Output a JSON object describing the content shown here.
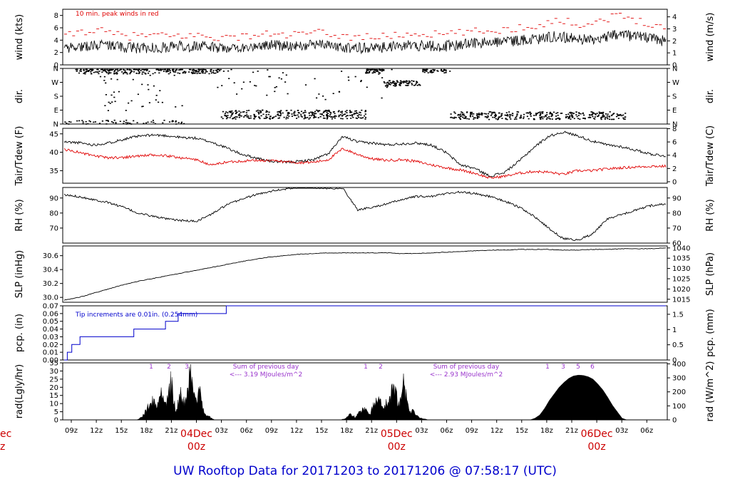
{
  "title": "UW Rooftop Data for 20171203  to  20171206 @ 07:58:17  (UTC)",
  "colors": {
    "black": "#000000",
    "red": "#e00000",
    "blue": "#0000cc",
    "purple": "#9933cc",
    "dayRed": "#cc0000"
  },
  "chart_data": [
    {
      "type": "line",
      "panel": "wind",
      "ylabel": "wind (kts)",
      "ylabel_right": "wind (m/s)",
      "ylim": [
        0,
        9
      ],
      "yticks": [
        0,
        2,
        4,
        6,
        8
      ],
      "yticks_right": [
        0,
        1,
        2,
        3,
        4
      ],
      "annotation": "10 min. peak winds in red",
      "series": [
        {
          "values": [
            2.6,
            3.0,
            3.3,
            3.1,
            2.8,
            2.7,
            2.8,
            3.0,
            3.0,
            2.9,
            2.8,
            2.7,
            3.0,
            3.3,
            3.1,
            3.2,
            3.4,
            3.0,
            2.8,
            2.7,
            2.8,
            3.0,
            3.2,
            3.1,
            3.0,
            3.3,
            3.5,
            3.6,
            3.8,
            4.0,
            4.2,
            4.6,
            4.4,
            4.0,
            4.5,
            5.0,
            4.6,
            4.3,
            3.8
          ]
        },
        {
          "values": [
            4.6,
            5.4,
            5.6,
            5.0,
            4.6,
            4.8,
            4.7,
            4.6,
            4.8,
            4.6,
            4.4,
            4.5,
            4.8,
            5.0,
            4.8,
            5.0,
            5.2,
            4.9,
            4.5,
            4.6,
            4.5,
            4.8,
            5.0,
            5.0,
            4.9,
            5.2,
            5.4,
            5.5,
            5.7,
            6.1,
            6.4,
            7.2,
            6.9,
            6.5,
            7.2,
            8.0,
            7.4,
            6.8,
            6.0
          ]
        }
      ]
    },
    {
      "type": "scatter",
      "panel": "dir",
      "ylabel": "dir.",
      "ylabel_right": "dir.",
      "yticks": [
        "N",
        "E",
        "S",
        "W",
        "N"
      ]
    },
    {
      "type": "line",
      "panel": "temperature",
      "ylabel": "Tair/Tdew (F)",
      "ylabel_right": "Tair/Tdew (C)",
      "ylim": [
        31.6,
        46.5
      ],
      "yticks": [
        35,
        40,
        45
      ],
      "yticks_right": [
        0,
        2,
        4,
        6,
        8
      ],
      "series": [
        {
          "values": [
            42.8,
            42.6,
            42.0,
            42.5,
            43.5,
            44.3,
            44.7,
            44.5,
            44.0,
            43.8,
            42.8,
            41.3,
            39.6,
            38.5,
            37.6,
            37.3,
            37.5,
            38.0,
            39.6,
            44.3,
            42.8,
            42.5,
            42.0,
            42.3,
            42.5,
            42.0,
            40.0,
            36.6,
            35.6,
            33.5,
            34.5,
            37.6,
            41.3,
            44.3,
            45.5,
            44.5,
            43.0,
            42.0,
            41.5,
            40.5,
            39.5,
            39.0
          ]
        },
        {
          "values": [
            40.8,
            40.0,
            39.0,
            38.5,
            38.6,
            39.0,
            39.2,
            39.0,
            38.5,
            38.0,
            36.5,
            37.3,
            37.6,
            37.8,
            37.7,
            37.5,
            37.2,
            37.3,
            38.0,
            41.0,
            39.4,
            38.2,
            37.8,
            38.0,
            37.5,
            36.6,
            35.8,
            35.2,
            34.3,
            33.0,
            33.5,
            34.3,
            34.8,
            34.6,
            34.0,
            35.0,
            35.0,
            35.5,
            35.8,
            36.0,
            36.2,
            36.2
          ]
        }
      ]
    },
    {
      "type": "line",
      "panel": "rh",
      "ylabel": "RH (%)",
      "ylabel_right": "RH (%)",
      "ylim": [
        60,
        97
      ],
      "yticks": [
        70,
        80,
        90
      ],
      "yticks_right": [
        60,
        70,
        80,
        90
      ],
      "series": [
        {
          "values": [
            92,
            91,
            89,
            87,
            84,
            80,
            78,
            76,
            75,
            74.5,
            79,
            85,
            89,
            92,
            94.5,
            96,
            97,
            97,
            96.5,
            96.5,
            82,
            84,
            86,
            89,
            91,
            91,
            93,
            94,
            93,
            91,
            88,
            84,
            78,
            70,
            63,
            62,
            66,
            76,
            79,
            82,
            85,
            86
          ]
        }
      ]
    },
    {
      "type": "line",
      "panel": "slp",
      "ylabel": "SLP (inHg)",
      "ylabel_right": "SLP (hPa)",
      "ylim": [
        29.93,
        30.74
      ],
      "yticks": [
        30.0,
        30.2,
        30.4,
        30.6
      ],
      "yticks_right": [
        1015,
        1020,
        1025,
        1030,
        1035,
        1040
      ],
      "series": [
        {
          "values": [
            29.96,
            30.0,
            30.06,
            30.12,
            30.18,
            30.23,
            30.27,
            30.31,
            30.35,
            30.39,
            30.43,
            30.47,
            30.51,
            30.55,
            30.58,
            30.6,
            30.62,
            30.63,
            30.64,
            30.64,
            30.64,
            30.64,
            30.64,
            30.63,
            30.63,
            30.64,
            30.65,
            30.66,
            30.67,
            30.68,
            30.68,
            30.69,
            30.69,
            30.69,
            30.68,
            30.68,
            30.69,
            30.69,
            30.7,
            30.7,
            30.7,
            30.71
          ]
        }
      ]
    },
    {
      "type": "line",
      "panel": "pcp",
      "ylabel": "pcp. (in)",
      "ylabel_right": "pcp. (mm)",
      "ylim": [
        0,
        0.07
      ],
      "yticks": [
        0.0,
        0.01,
        0.02,
        0.03,
        0.04,
        0.05,
        0.06,
        0.07
      ],
      "yticks_right": [
        0,
        0.5,
        1,
        1.5
      ],
      "annotation": "Tip increments are 0.01in. (0.254mm)",
      "series": [
        {
          "x": [
            0,
            0.5,
            0.7,
            1.2,
            1.5,
            2.5,
            3.0,
            10.1,
            11.0,
            14.5,
            16.0,
            18.0,
            25.6,
            95.0
          ],
          "values": [
            0,
            0.01,
            0.01,
            0.02,
            0.02,
            0.03,
            0.03,
            0.03,
            0.04,
            0.04,
            0.05,
            0.06,
            0.07,
            0.07
          ]
        }
      ]
    },
    {
      "type": "area",
      "panel": "rad",
      "ylabel": "rad(Lgly/hr)",
      "ylabel_right": "rad (W/m^2)",
      "ylim": [
        0,
        35
      ],
      "yticks": [
        0,
        5,
        10,
        15,
        20,
        25,
        30,
        35
      ],
      "yticks_right": [
        0,
        100,
        200,
        300,
        400
      ],
      "annotations": [
        {
          "text": "Sum of previous day",
          "line2": "<--- 3.19 MJoules/m^2"
        },
        {
          "text": "Sum of previous day",
          "line2": "<--- 2.93 MJoules/m^2"
        }
      ],
      "hour_marks": [
        "1",
        "2",
        "3",
        "1",
        "2",
        "1",
        "3",
        "5",
        "6"
      ],
      "series": [
        {
          "values": [
            0,
            0,
            0,
            0,
            0,
            0,
            0,
            0,
            0,
            0,
            0,
            0,
            0,
            0,
            0,
            0,
            2,
            7,
            15,
            9,
            20,
            12,
            27,
            8,
            18,
            11,
            33,
            15,
            19,
            4,
            2,
            0,
            0,
            0,
            0,
            0,
            0,
            0,
            0,
            0,
            0,
            0,
            0,
            0,
            0,
            0,
            0,
            0,
            0,
            0,
            0,
            0,
            0,
            0,
            0,
            0,
            0,
            0,
            1,
            4,
            2,
            6,
            8,
            5,
            12,
            14,
            9,
            17,
            22,
            10,
            27,
            7,
            6,
            2,
            1,
            0,
            0,
            0,
            0,
            0,
            0,
            0,
            0,
            0,
            0,
            0,
            0,
            0,
            0,
            0,
            0,
            0,
            0,
            0,
            0,
            0,
            0,
            1,
            3,
            7,
            12,
            16,
            20,
            23,
            25.5,
            27,
            27.5,
            27.3,
            26.5,
            25,
            22,
            18.5,
            14,
            9,
            5,
            1,
            0,
            0,
            0,
            0,
            0,
            0,
            0,
            0,
            0
          ]
        }
      ]
    }
  ],
  "xaxis": {
    "ticks": [
      "09z",
      "12z",
      "15z",
      "18z",
      "21z",
      "",
      "03z",
      "06z",
      "09z",
      "12z",
      "15z",
      "18z",
      "21z",
      "",
      "03z",
      "06z",
      "09z",
      "12z",
      "15z",
      "18z",
      "21z",
      "",
      "03z",
      "06z"
    ],
    "days": [
      {
        "date": "04Dec",
        "time": "00z"
      },
      {
        "date": "05Dec",
        "time": "00z"
      },
      {
        "date": "06Dec",
        "time": "00z"
      }
    ],
    "left_day_frag": {
      "date": "ec",
      "time": "z"
    }
  }
}
